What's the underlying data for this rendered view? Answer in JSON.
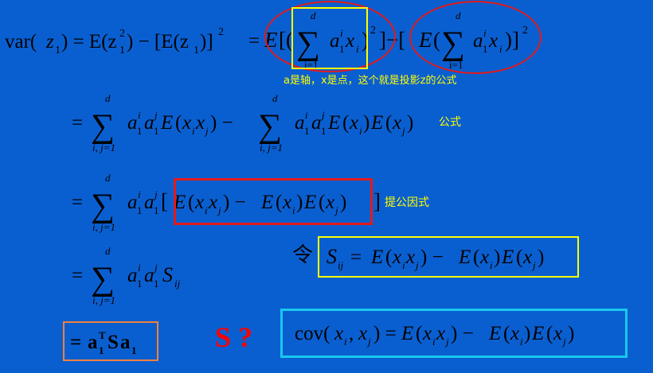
{
  "colors": {
    "background": "#0a5fd0",
    "formula_text": "#000000",
    "note_text": "#ffff00",
    "highlight_red": "#e31a1a",
    "highlight_yellow": "#ffff00",
    "highlight_cyan": "#19c8ef",
    "highlight_orange": "#f0803c",
    "s_question_red": "#ff0000"
  },
  "notes": {
    "projection_note": "a是轴，x是点，这个就是投影z的公式",
    "formula_note": "公式",
    "factor_note": "提公因式"
  },
  "labels": {
    "let_symbol": "令",
    "s_question": "S ?"
  },
  "sum_bounds": {
    "upper": "d",
    "lower_i": "i=1",
    "lower_ij": "i, j=1"
  }
}
